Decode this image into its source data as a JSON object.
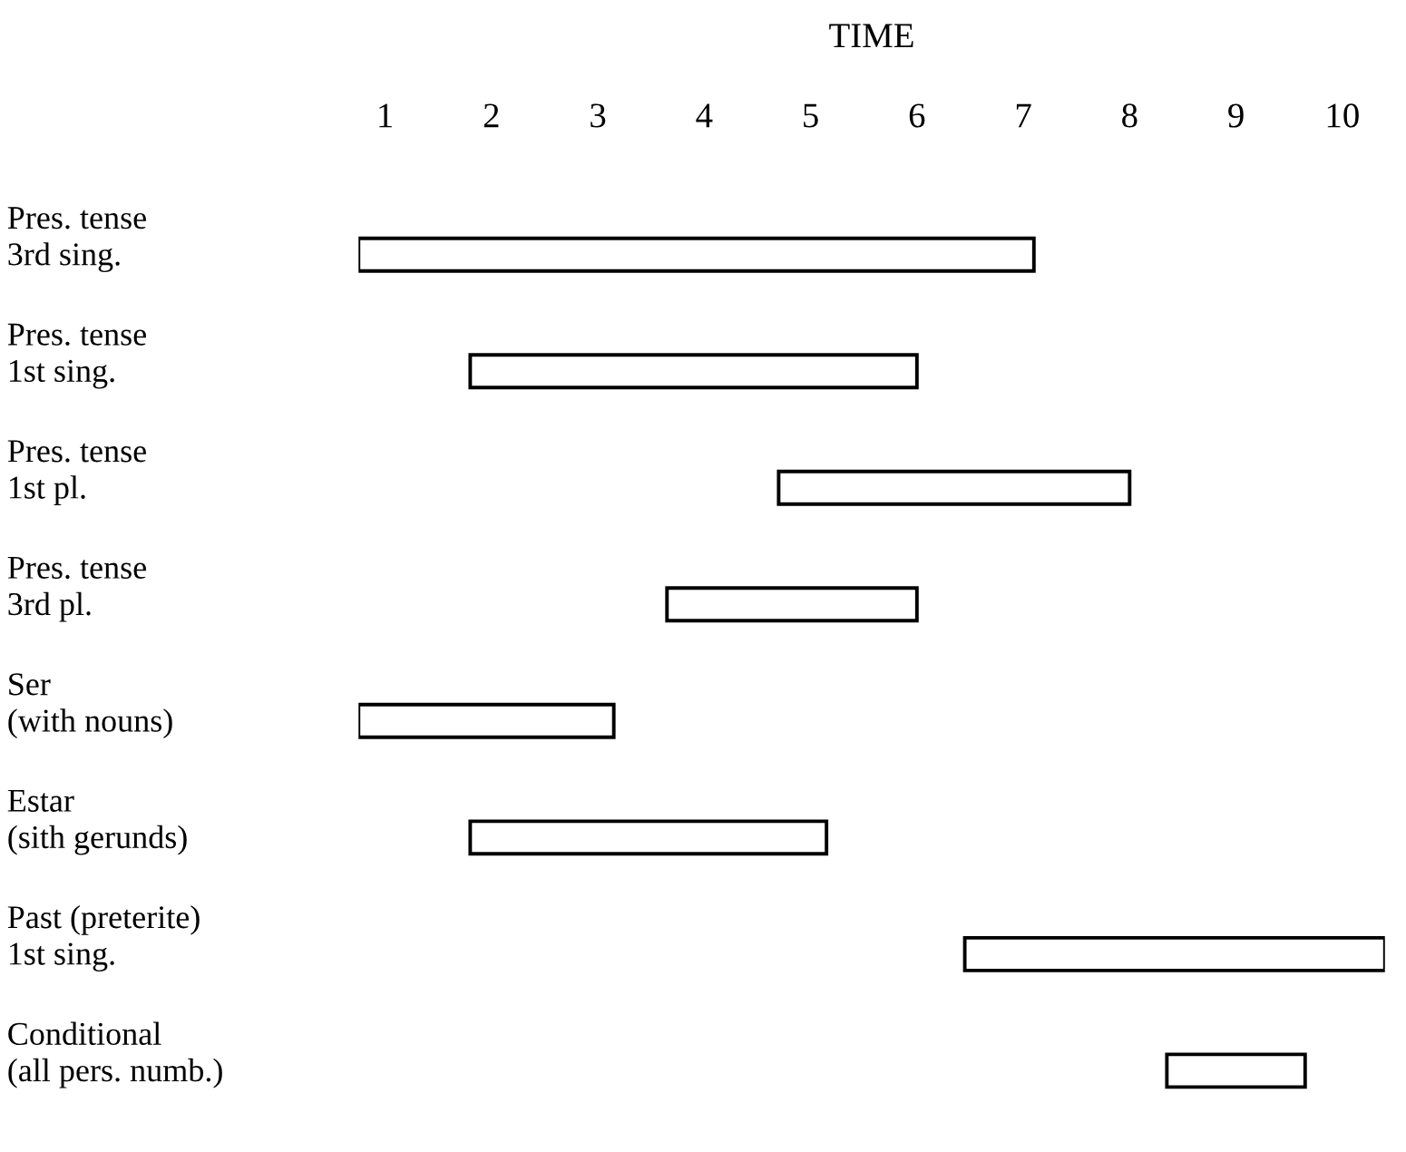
{
  "chart_data": {
    "type": "bar",
    "orientation": "horizontal",
    "xlabel": "TIME",
    "categories": [
      "Pres. tense\n3rd sing.",
      "Pres. tense\n1st sing.",
      "Pres. tense\n1st pl.",
      "Pres. tense\n3rd pl.",
      "Ser\n(with nouns)",
      "Estar\n(sith gerunds)",
      "Past (preterite)\n1st sing.",
      "Conditional\n(all pers. numb.)"
    ],
    "base": [
      0.75,
      1.8,
      4.7,
      3.65,
      0.75,
      1.8,
      6.45,
      8.35
    ],
    "values": [
      6.35,
      4.2,
      3.3,
      2.35,
      2.4,
      3.35,
      3.95,
      1.3
    ],
    "color": "#ffffff",
    "xlim": [
      0.75,
      10.4
    ],
    "xticks": [
      1,
      2,
      3,
      4,
      5,
      6,
      7,
      8,
      9,
      10
    ],
    "grid": false
  }
}
